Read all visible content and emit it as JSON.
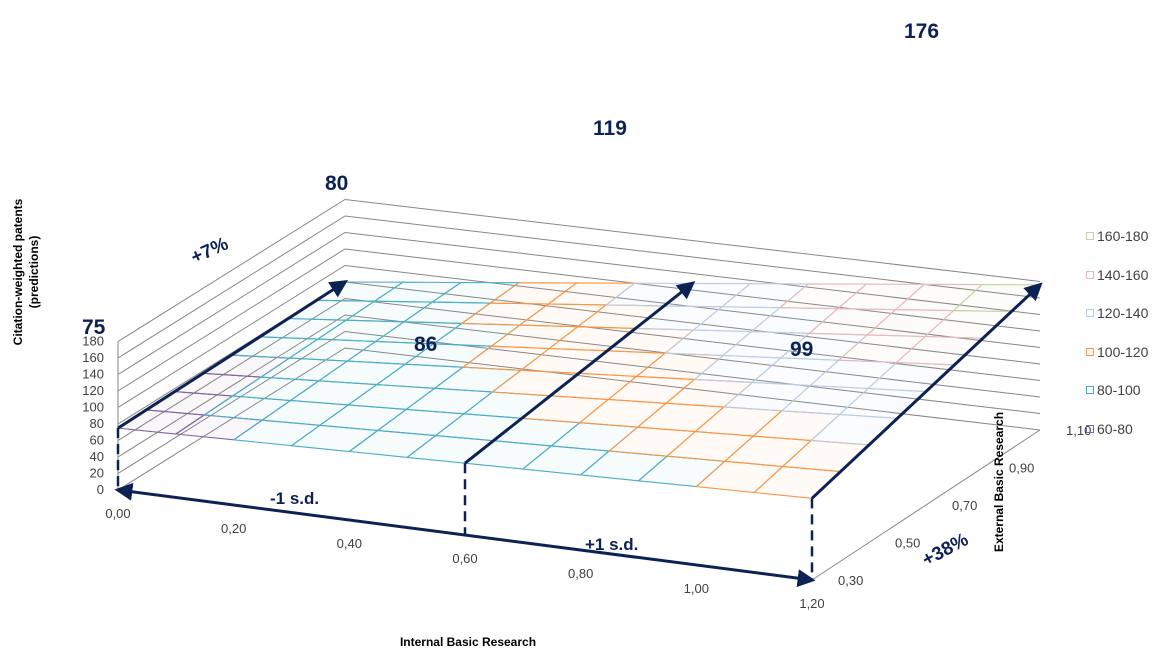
{
  "chart_data": {
    "type": "surface",
    "xlabel": "Internal Basic Research",
    "zaxis_label_line1": "Citation-weighted patents",
    "zaxis_label_line2": "(predictions)",
    "ylabel": "External Basic Research",
    "x_ticks": [
      "0,00",
      "0,20",
      "0,40",
      "0,60",
      "0,80",
      "1,00",
      "1,20"
    ],
    "y_ticks": [
      "0,30",
      "0,50",
      "0,70",
      "0,90",
      "1,10"
    ],
    "z_ticks": [
      "0",
      "20",
      "40",
      "60",
      "80",
      "100",
      "120",
      "140",
      "160",
      "180"
    ],
    "zlim": [
      0,
      180
    ],
    "xlim": [
      0,
      1.2
    ],
    "ylim": [
      0.3,
      1.1
    ],
    "corner_values": {
      "x0_ymin": 75,
      "x0_ymax": 80,
      "xmax_ymin": 99,
      "xmax_ymax": 176
    },
    "legend": [
      {
        "label": "160-180",
        "color": "#c3d69b"
      },
      {
        "label": "140-160",
        "color": "#e6b9b8"
      },
      {
        "label": "120-140",
        "color": "#b9cde5"
      },
      {
        "label": "100-120",
        "color": "#f79646"
      },
      {
        "label": "80-100",
        "color": "#4bacc6"
      },
      {
        "label": "60-80",
        "color": "#8064a2"
      }
    ],
    "annotations": {
      "values": [
        "75",
        "80",
        "86",
        "119",
        "99",
        "176"
      ],
      "pct_internal_low": "+7%",
      "pct_external": "+38%",
      "sd_minus": "-1 s.d.",
      "sd_plus": "+1 s.d."
    }
  }
}
